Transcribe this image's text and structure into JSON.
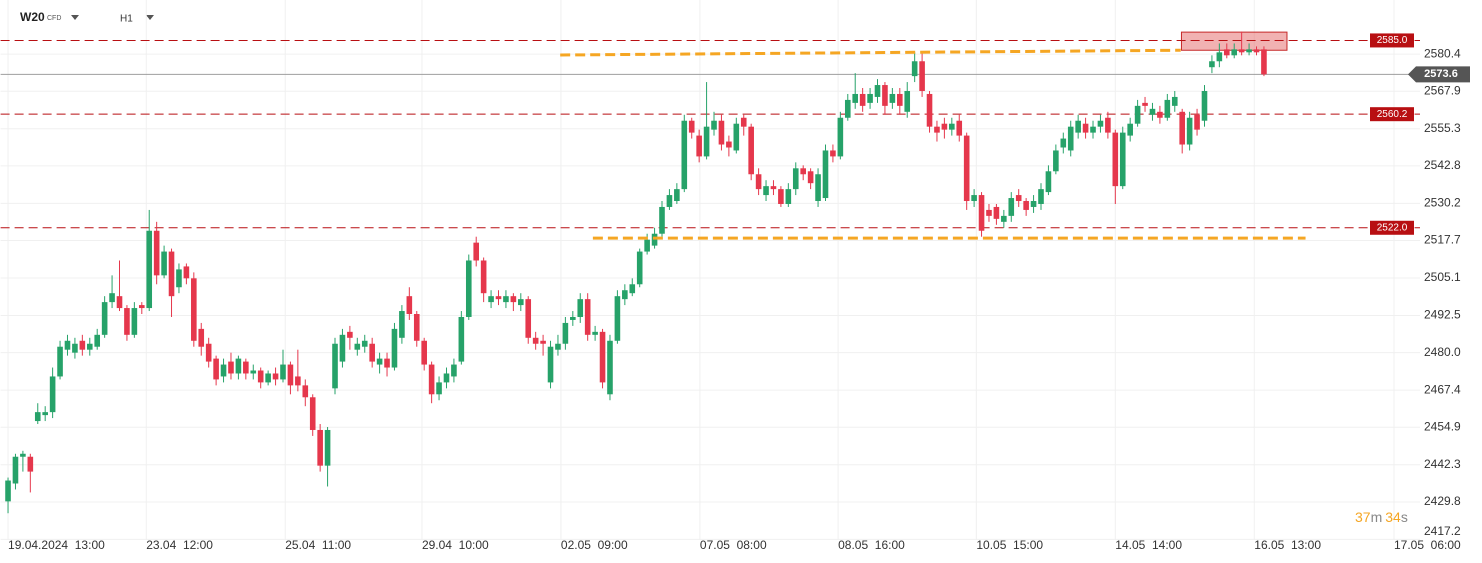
{
  "header": {
    "symbol": "W20",
    "instrument_type": "CFD",
    "timeframe": "H1"
  },
  "countdown": {
    "minutes": 37,
    "minutes_unit": "m",
    "seconds": 34,
    "seconds_unit": "s"
  },
  "chart_data": {
    "type": "candlestick",
    "up_color": "#26a269",
    "down_color": "#e5374c",
    "grid": true,
    "xlim": [
      -1,
      190
    ],
    "ylim": [
      2417.0,
      2598.6
    ],
    "xticks": [
      {
        "value": 0,
        "label": "19.04.2024  13:00"
      },
      {
        "value": 18.6,
        "label": "23.04  12:00"
      },
      {
        "value": 37.3,
        "label": "25.04  11:00"
      },
      {
        "value": 55.7,
        "label": "29.04  10:00"
      },
      {
        "value": 74.4,
        "label": "02.05  09:00"
      },
      {
        "value": 93.1,
        "label": "07.05  08:00"
      },
      {
        "value": 111.7,
        "label": "08.05  16:00"
      },
      {
        "value": 130.3,
        "label": "10.05  15:00"
      },
      {
        "value": 149,
        "label": "14.05  14:00"
      },
      {
        "value": 167.7,
        "label": "16.05  13:00"
      },
      {
        "value": 186.5,
        "label": "17.05  06:00"
      }
    ],
    "yticks": [
      2580.4,
      2567.9,
      2555.3,
      2542.8,
      2530.2,
      2517.7,
      2505.1,
      2492.5,
      {
        "value": 2480,
        "label": "2480.0"
      },
      2467.4,
      2454.9,
      2442.3,
      2429.8,
      2417.2
    ],
    "x": [
      0,
      1,
      2,
      3,
      4,
      5,
      6,
      7,
      8,
      9,
      10,
      11,
      12,
      13,
      14,
      15,
      16,
      17,
      18,
      19,
      20,
      21,
      22,
      23,
      24,
      25,
      26,
      27,
      28,
      29,
      30,
      31,
      32,
      33,
      34,
      35,
      36,
      37,
      38,
      39,
      40,
      41,
      42,
      43,
      44,
      45,
      46,
      47,
      48,
      49,
      50,
      51,
      52,
      53,
      54,
      55,
      56,
      57,
      58,
      59,
      60,
      61,
      62,
      63,
      64,
      65,
      66,
      67,
      68,
      69,
      70,
      71,
      72,
      73,
      74,
      75,
      76,
      77,
      78,
      79,
      80,
      81,
      82,
      83,
      84,
      85,
      86,
      87,
      88,
      89,
      90,
      91,
      92,
      93,
      94,
      95,
      96,
      97,
      98,
      99,
      100,
      101,
      102,
      103,
      104,
      105,
      106,
      107,
      108,
      109,
      110,
      111,
      112,
      113,
      114,
      115,
      116,
      117,
      118,
      119,
      120,
      121,
      122,
      123,
      124,
      125,
      126,
      127,
      128,
      129,
      130,
      131,
      132,
      133,
      134,
      135,
      136,
      137,
      138,
      139,
      140,
      141,
      142,
      143,
      144,
      145,
      146,
      147,
      148,
      149,
      150,
      151,
      152,
      153,
      154,
      155,
      156,
      157,
      158,
      159,
      160,
      161,
      162,
      163,
      164,
      165,
      166,
      167,
      168,
      169
    ],
    "open": [
      2430,
      2436,
      2445,
      2445,
      2457,
      2459,
      2460,
      2472,
      2481,
      2480,
      2484,
      2481,
      2482,
      2486,
      2497,
      2499,
      2495,
      2486,
      2496,
      2495,
      2521,
      2506,
      2514,
      2502,
      2509,
      2505,
      2488,
      2483,
      2478,
      2472,
      2477,
      2473,
      2477,
      2473,
      2474,
      2470,
      2473,
      2471,
      2476,
      2472,
      2469,
      2465,
      2454,
      2442,
      2468,
      2477,
      2487,
      2481,
      2482,
      2483,
      2476,
      2478,
      2475,
      2485,
      2499,
      2493,
      2484,
      2476,
      2466,
      2470,
      2472,
      2477,
      2492,
      2517,
      2511,
      2497,
      2499,
      2497,
      2499,
      2496,
      2498,
      2485,
      2484,
      2470,
      2481,
      2483,
      2491,
      2492,
      2498,
      2486,
      2487,
      2466,
      2484,
      2498,
      2500,
      2503,
      2514,
      2516,
      2520,
      2529,
      2531,
      2535,
      2558,
      2553,
      2546,
      2555,
      2558,
      2551,
      2548,
      2559,
      2556,
      2540,
      2533,
      2536,
      2535,
      2530,
      2535,
      2542,
      2541,
      2531,
      2532,
      2548,
      2546,
      2559,
      2564,
      2567,
      2564,
      2566,
      2570,
      2564,
      2567,
      2561,
      2573,
      2578,
      2567,
      2556,
      2557,
      2555,
      2558,
      2553,
      2531,
      2533,
      2528,
      2529,
      2524,
      2526,
      2533,
      2531,
      2529,
      2530,
      2534,
      2541,
      2549,
      2548,
      2554,
      2557,
      2554,
      2556,
      2559,
      2554,
      2536,
      2553,
      2557,
      2564,
      2560,
      2561,
      2559,
      2563,
      2561,
      2550,
      2560,
      2558,
      2576,
      2578,
      2582,
      2580,
      2582,
      2581,
      2582,
      2582
    ],
    "high": [
      2438,
      2446,
      2447,
      2446,
      2463,
      2462,
      2475,
      2484,
      2486,
      2485,
      2486,
      2485,
      2488,
      2499,
      2506,
      2511,
      2496,
      2497,
      2497,
      2528,
      2524,
      2516,
      2515,
      2510,
      2510,
      2507,
      2490,
      2485,
      2479,
      2478,
      2480,
      2479,
      2478,
      2476,
      2475,
      2474,
      2475,
      2481,
      2477,
      2481,
      2471,
      2466,
      2456,
      2455,
      2485,
      2488,
      2489,
      2485,
      2486,
      2485,
      2480,
      2480,
      2490,
      2496,
      2502,
      2494,
      2485,
      2477,
      2472,
      2475,
      2478,
      2494,
      2513,
      2519,
      2512,
      2501,
      2501,
      2501,
      2500,
      2500,
      2499,
      2487,
      2486,
      2484,
      2486,
      2492,
      2494,
      2500,
      2500,
      2489,
      2488,
      2486,
      2501,
      2503,
      2505,
      2515,
      2520,
      2522,
      2531,
      2535,
      2537,
      2560,
      2559,
      2555,
      2571,
      2561,
      2560,
      2553,
      2559,
      2560,
      2557,
      2542,
      2538,
      2538,
      2536,
      2537,
      2544,
      2543,
      2542,
      2542,
      2550,
      2550,
      2561,
      2567,
      2574,
      2569,
      2569,
      2572,
      2571,
      2569,
      2569,
      2571,
      2581,
      2581,
      2568,
      2558,
      2559,
      2559,
      2560,
      2554,
      2535,
      2534,
      2530,
      2530,
      2528,
      2534,
      2535,
      2532,
      2533,
      2537,
      2543,
      2550,
      2554,
      2558,
      2560,
      2559,
      2558,
      2560,
      2561,
      2555,
      2556,
      2559,
      2565,
      2566,
      2564,
      2563,
      2567,
      2568,
      2562,
      2561,
      2562,
      2570,
      2580,
      2584,
      2584,
      2584,
      2588,
      2584,
      2583,
      2583
    ],
    "low": [
      2426,
      2434,
      2440,
      2433,
      2456,
      2457,
      2458,
      2471,
      2479,
      2478,
      2479,
      2479,
      2481,
      2485,
      2495,
      2494,
      2484,
      2485,
      2493,
      2494,
      2503,
      2505,
      2492,
      2500,
      2503,
      2482,
      2479,
      2475,
      2469,
      2470,
      2471,
      2471,
      2471,
      2471,
      2468,
      2469,
      2469,
      2470,
      2466,
      2467,
      2462,
      2452,
      2440,
      2435,
      2466,
      2475,
      2481,
      2479,
      2480,
      2475,
      2473,
      2472,
      2474,
      2483,
      2491,
      2482,
      2474,
      2463,
      2464,
      2468,
      2470,
      2476,
      2491,
      2509,
      2497,
      2495,
      2496,
      2495,
      2494,
      2494,
      2483,
      2481,
      2479,
      2468,
      2479,
      2481,
      2489,
      2490,
      2484,
      2484,
      2468,
      2464,
      2483,
      2496,
      2499,
      2502,
      2513,
      2515,
      2519,
      2528,
      2530,
      2534,
      2552,
      2544,
      2545,
      2553,
      2548,
      2546,
      2547,
      2553,
      2538,
      2533,
      2531,
      2533,
      2529,
      2529,
      2533,
      2538,
      2535,
      2529,
      2531,
      2544,
      2545,
      2558,
      2562,
      2561,
      2562,
      2564,
      2560,
      2562,
      2560,
      2559,
      2571,
      2566,
      2554,
      2551,
      2552,
      2553,
      2551,
      2528,
      2529,
      2519,
      2524,
      2523,
      2522,
      2524,
      2529,
      2526,
      2527,
      2528,
      2533,
      2540,
      2547,
      2546,
      2552,
      2552,
      2552,
      2554,
      2552,
      2530,
      2535,
      2551,
      2556,
      2561,
      2558,
      2557,
      2558,
      2561,
      2547,
      2548,
      2553,
      2556,
      2574,
      2576,
      2579,
      2579,
      2580,
      2580,
      2580,
      2573
    ],
    "close": [
      2437,
      2445,
      2446,
      2440,
      2460,
      2460,
      2472,
      2482,
      2484,
      2483,
      2481,
      2483,
      2486,
      2497,
      2500,
      2495,
      2486,
      2495,
      2495,
      2521,
      2506,
      2514,
      2499,
      2508,
      2505,
      2484,
      2482,
      2477,
      2471,
      2476,
      2473,
      2478,
      2473,
      2474,
      2470,
      2473,
      2471,
      2476,
      2469,
      2469,
      2465,
      2454,
      2442,
      2454,
      2483,
      2486,
      2485,
      2483,
      2484,
      2477,
      2478,
      2475,
      2488,
      2494,
      2493,
      2484,
      2476,
      2466,
      2470,
      2473,
      2476,
      2492,
      2511,
      2511,
      2500,
      2499,
      2498,
      2499,
      2497,
      2498,
      2485,
      2483,
      2483,
      2482,
      2483,
      2490,
      2492,
      2498,
      2486,
      2487,
      2470,
      2484,
      2499,
      2501,
      2503,
      2514,
      2518,
      2520,
      2529,
      2533,
      2535,
      2558,
      2554,
      2546,
      2556,
      2558,
      2550,
      2549,
      2557,
      2556,
      2540,
      2535,
      2536,
      2535,
      2530,
      2535,
      2542,
      2540,
      2537,
      2540,
      2548,
      2546,
      2559,
      2565,
      2567,
      2563,
      2567,
      2570,
      2563,
      2567,
      2563,
      2568,
      2578,
      2568,
      2556,
      2554,
      2555,
      2557,
      2553,
      2531,
      2533,
      2521,
      2526,
      2525,
      2526,
      2532,
      2531,
      2528,
      2531,
      2535,
      2541,
      2548,
      2552,
      2556,
      2558,
      2554,
      2556,
      2558,
      2554,
      2536,
      2554,
      2557,
      2563,
      2563,
      2562,
      2559,
      2565,
      2566,
      2550,
      2559,
      2555,
      2568,
      2578,
      2581,
      2580,
      2582,
      2581,
      2582,
      2581,
      2573.6
    ],
    "level_color": "#b80f12",
    "levels": [
      {
        "value": 2585,
        "label": "2585.0"
      },
      {
        "value": 2560.2,
        "label": "2560.2"
      },
      {
        "value": 2522,
        "label": "2522.0"
      }
    ],
    "last_price": 2573.6,
    "last_price_color": "#555555",
    "trend_line_color": "#f5a623",
    "trend_lines": [
      {
        "x": [
          74.3,
          157.8
        ],
        "y": [
          2580.1,
          2581.7
        ]
      },
      {
        "x": [
          78.7,
          174.6
        ],
        "y": [
          2518.5,
          2518.5
        ]
      }
    ],
    "zone_color": "#e57373",
    "zones": [
      {
        "x": [
          157.9,
          172.1
        ],
        "y": [
          2581.7,
          2587.8
        ]
      }
    ]
  }
}
